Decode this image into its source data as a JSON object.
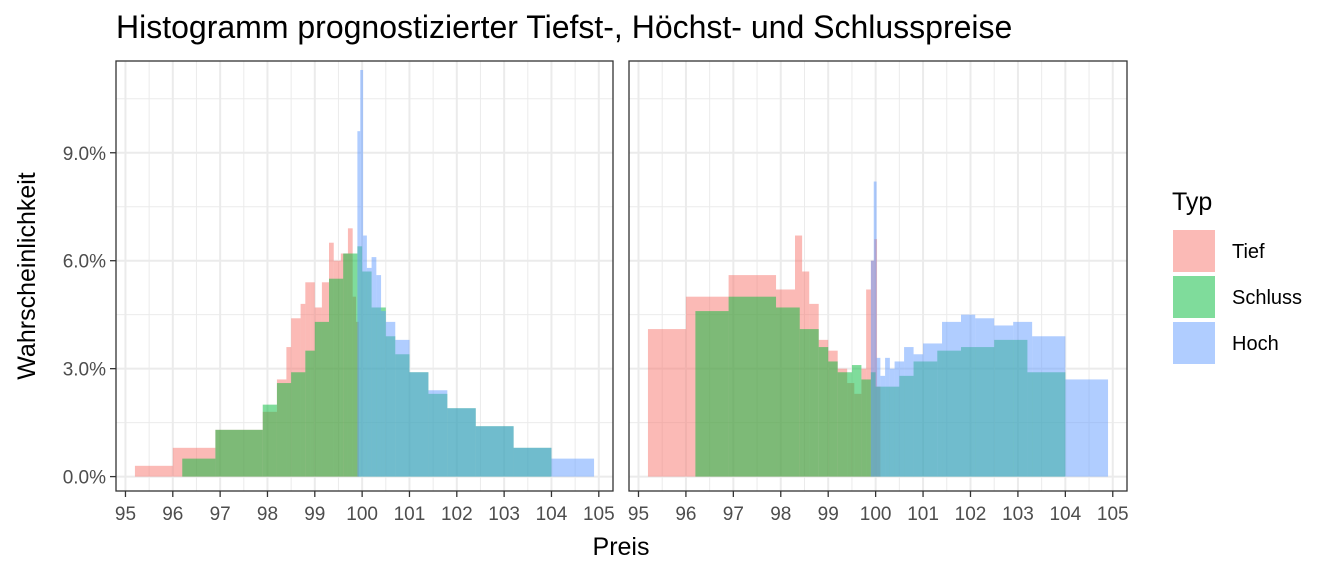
{
  "chart_data": {
    "type": "histogram",
    "title": "Histogramm prognostizierter Tiefst-, Höchst- und Schlusspreise",
    "xlabel": "Preis",
    "ylabel": "Wahrscheinlichkeit",
    "xlim": [
      94.8,
      105.3
    ],
    "ylim": [
      -0.004,
      0.1155
    ],
    "x_ticks": [
      95,
      96,
      97,
      98,
      99,
      100,
      101,
      102,
      103,
      104,
      105
    ],
    "y_ticks": [
      0.0,
      0.03,
      0.06,
      0.09
    ],
    "y_tick_labels": [
      "0.0%",
      "3.0%",
      "6.0%",
      "9.0%"
    ],
    "grid": true,
    "facets": 2,
    "legend": {
      "title": "Typ",
      "position": "right",
      "entries": [
        {
          "name": "Tief",
          "color": "#F8766D"
        },
        {
          "name": "Schluss",
          "color": "#00BA38"
        },
        {
          "name": "Hoch",
          "color": "#619CFF"
        }
      ]
    },
    "panels": [
      {
        "series": [
          {
            "name": "Tief",
            "color": "#F8766D",
            "bins": [
              [
                95.2,
                96.0,
                0.003
              ],
              [
                96.0,
                96.9,
                0.008
              ],
              [
                96.9,
                97.9,
                0.013
              ],
              [
                97.9,
                98.2,
                0.018
              ],
              [
                98.2,
                98.4,
                0.027
              ],
              [
                98.4,
                98.5,
                0.036
              ],
              [
                98.5,
                98.7,
                0.044
              ],
              [
                98.7,
                98.8,
                0.048
              ],
              [
                98.8,
                98.9,
                0.054
              ],
              [
                98.9,
                99.0,
                0.054
              ],
              [
                99.0,
                99.15,
                0.047
              ],
              [
                99.15,
                99.3,
                0.054
              ],
              [
                99.3,
                99.4,
                0.065
              ],
              [
                99.4,
                99.55,
                0.06
              ],
              [
                99.55,
                99.7,
                0.062
              ],
              [
                99.7,
                99.8,
                0.069
              ],
              [
                99.8,
                99.87,
                0.05
              ],
              [
                99.87,
                99.93,
                0.043
              ]
            ]
          },
          {
            "name": "Schluss",
            "color": "#00BA38",
            "bins": [
              [
                96.2,
                96.9,
                0.005
              ],
              [
                96.9,
                97.9,
                0.013
              ],
              [
                97.9,
                98.2,
                0.02
              ],
              [
                98.2,
                98.5,
                0.026
              ],
              [
                98.5,
                98.8,
                0.029
              ],
              [
                98.8,
                99.0,
                0.035
              ],
              [
                99.0,
                99.3,
                0.043
              ],
              [
                99.3,
                99.6,
                0.055
              ],
              [
                99.6,
                99.9,
                0.062
              ],
              [
                99.9,
                100.0,
                0.064
              ],
              [
                100.0,
                100.2,
                0.057
              ],
              [
                100.2,
                100.5,
                0.047
              ],
              [
                100.5,
                100.7,
                0.039
              ],
              [
                100.7,
                101.0,
                0.034
              ],
              [
                101.0,
                101.4,
                0.029
              ],
              [
                101.4,
                101.8,
                0.023
              ],
              [
                101.8,
                102.4,
                0.019
              ],
              [
                102.4,
                103.2,
                0.014
              ],
              [
                103.2,
                104.0,
                0.008
              ]
            ]
          },
          {
            "name": "Hoch",
            "color": "#619CFF",
            "bins": [
              [
                99.9,
                99.96,
                0.096
              ],
              [
                99.96,
                100.02,
                0.113
              ],
              [
                100.02,
                100.1,
                0.067
              ],
              [
                100.1,
                100.2,
                0.058
              ],
              [
                100.2,
                100.3,
                0.061
              ],
              [
                100.3,
                100.4,
                0.056
              ],
              [
                100.4,
                100.5,
                0.046
              ],
              [
                100.5,
                100.7,
                0.043
              ],
              [
                100.7,
                101.0,
                0.038
              ],
              [
                101.0,
                101.4,
                0.029
              ],
              [
                101.4,
                101.8,
                0.024
              ],
              [
                101.8,
                102.4,
                0.019
              ],
              [
                102.4,
                103.2,
                0.014
              ],
              [
                103.2,
                104.0,
                0.008
              ],
              [
                104.0,
                104.9,
                0.005
              ]
            ]
          }
        ]
      },
      {
        "series": [
          {
            "name": "Tief",
            "color": "#F8766D",
            "bins": [
              [
                95.2,
                96.0,
                0.041
              ],
              [
                96.0,
                96.9,
                0.05
              ],
              [
                96.9,
                97.9,
                0.056
              ],
              [
                97.9,
                98.3,
                0.052
              ],
              [
                98.3,
                98.45,
                0.067
              ],
              [
                98.45,
                98.6,
                0.057
              ],
              [
                98.6,
                98.8,
                0.048
              ],
              [
                98.8,
                99.0,
                0.038
              ],
              [
                99.0,
                99.2,
                0.035
              ],
              [
                99.2,
                99.4,
                0.03
              ],
              [
                99.4,
                99.55,
                0.026
              ],
              [
                99.55,
                99.7,
                0.023
              ],
              [
                99.7,
                99.8,
                0.03
              ],
              [
                99.8,
                99.9,
                0.052
              ],
              [
                99.9,
                99.97,
                0.06
              ],
              [
                99.97,
                100.03,
                0.066
              ],
              [
                100.03,
                100.1,
                0.025
              ]
            ]
          },
          {
            "name": "Schluss",
            "color": "#00BA38",
            "bins": [
              [
                96.2,
                96.9,
                0.046
              ],
              [
                96.9,
                97.9,
                0.05
              ],
              [
                97.9,
                98.4,
                0.047
              ],
              [
                98.4,
                98.8,
                0.041
              ],
              [
                98.8,
                99.0,
                0.036
              ],
              [
                99.0,
                99.2,
                0.032
              ],
              [
                99.2,
                99.5,
                0.029
              ],
              [
                99.5,
                99.7,
                0.031
              ],
              [
                99.7,
                99.9,
                0.027
              ],
              [
                99.9,
                100.0,
                0.029
              ],
              [
                100.0,
                100.2,
                0.025
              ],
              [
                100.2,
                100.5,
                0.025
              ],
              [
                100.5,
                100.8,
                0.028
              ],
              [
                100.8,
                101.3,
                0.032
              ],
              [
                101.3,
                101.8,
                0.035
              ],
              [
                101.8,
                102.5,
                0.036
              ],
              [
                102.5,
                103.2,
                0.038
              ],
              [
                103.2,
                104.0,
                0.029
              ]
            ]
          },
          {
            "name": "Hoch",
            "color": "#619CFF",
            "bins": [
              [
                99.9,
                99.96,
                0.06
              ],
              [
                99.96,
                100.02,
                0.082
              ],
              [
                100.02,
                100.1,
                0.033
              ],
              [
                100.1,
                100.2,
                0.028
              ],
              [
                100.2,
                100.3,
                0.033
              ],
              [
                100.3,
                100.4,
                0.03
              ],
              [
                100.4,
                100.6,
                0.032
              ],
              [
                100.6,
                100.8,
                0.036
              ],
              [
                100.8,
                101.0,
                0.034
              ],
              [
                101.0,
                101.4,
                0.037
              ],
              [
                101.4,
                101.8,
                0.043
              ],
              [
                101.8,
                102.1,
                0.045
              ],
              [
                102.1,
                102.5,
                0.044
              ],
              [
                102.5,
                102.9,
                0.042
              ],
              [
                102.9,
                103.3,
                0.043
              ],
              [
                103.3,
                104.0,
                0.039
              ],
              [
                104.0,
                104.9,
                0.027
              ]
            ]
          }
        ]
      }
    ]
  }
}
